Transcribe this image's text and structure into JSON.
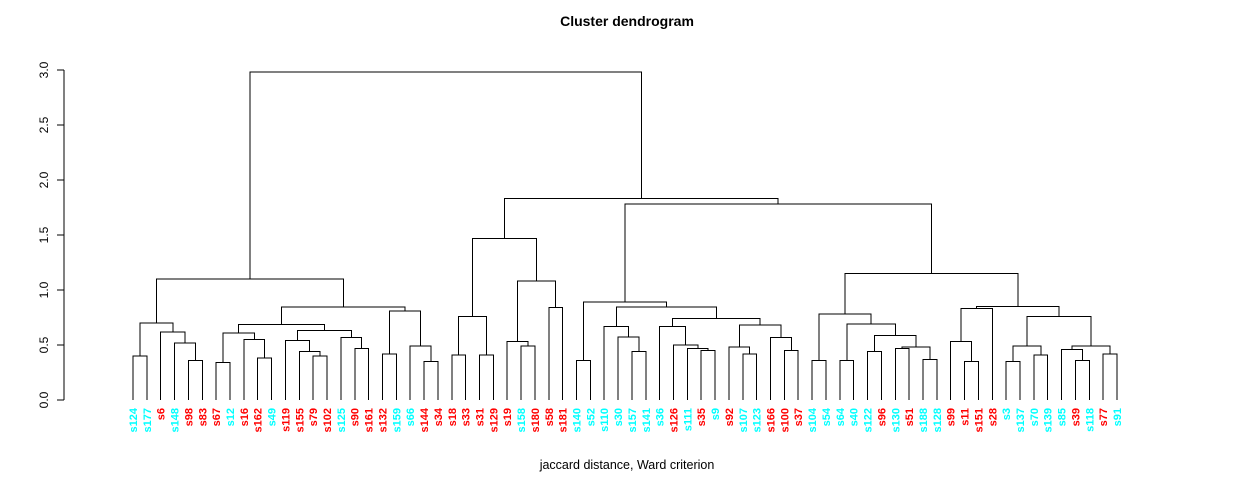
{
  "colors": {
    "red": "#FF0000",
    "cyan": "#00FFFF",
    "line": "#000000",
    "background": "#FFFFFF"
  },
  "chart_data": {
    "type": "dendrogram",
    "title": "Cluster dendrogram",
    "caption": "jaccard distance, Ward criterion",
    "ylabel": "",
    "ylim": [
      0.0,
      3.0
    ],
    "y_ticks": [
      0.0,
      0.5,
      1.0,
      1.5,
      2.0,
      2.5,
      3.0
    ],
    "leaf_count": 72,
    "leaves": [
      {
        "label": "s124",
        "color": "cyan"
      },
      {
        "label": "s177",
        "color": "cyan"
      },
      {
        "label": "s6",
        "color": "red"
      },
      {
        "label": "s148",
        "color": "cyan"
      },
      {
        "label": "s98",
        "color": "red"
      },
      {
        "label": "s83",
        "color": "red"
      },
      {
        "label": "s67",
        "color": "red"
      },
      {
        "label": "s12",
        "color": "cyan"
      },
      {
        "label": "s16",
        "color": "red"
      },
      {
        "label": "s162",
        "color": "red"
      },
      {
        "label": "s49",
        "color": "cyan"
      },
      {
        "label": "s119",
        "color": "red"
      },
      {
        "label": "s155",
        "color": "red"
      },
      {
        "label": "s79",
        "color": "red"
      },
      {
        "label": "s102",
        "color": "red"
      },
      {
        "label": "s125",
        "color": "cyan"
      },
      {
        "label": "s90",
        "color": "red"
      },
      {
        "label": "s161",
        "color": "red"
      },
      {
        "label": "s132",
        "color": "red"
      },
      {
        "label": "s159",
        "color": "cyan"
      },
      {
        "label": "s66",
        "color": "cyan"
      },
      {
        "label": "s144",
        "color": "red"
      },
      {
        "label": "s34",
        "color": "red"
      },
      {
        "label": "s18",
        "color": "red"
      },
      {
        "label": "s33",
        "color": "red"
      },
      {
        "label": "s31",
        "color": "red"
      },
      {
        "label": "s129",
        "color": "red"
      },
      {
        "label": "s19",
        "color": "red"
      },
      {
        "label": "s158",
        "color": "cyan"
      },
      {
        "label": "s180",
        "color": "red"
      },
      {
        "label": "s58",
        "color": "red"
      },
      {
        "label": "s181",
        "color": "red"
      },
      {
        "label": "s140",
        "color": "cyan"
      },
      {
        "label": "s52",
        "color": "cyan"
      },
      {
        "label": "s110",
        "color": "cyan"
      },
      {
        "label": "s30",
        "color": "cyan"
      },
      {
        "label": "s157",
        "color": "cyan"
      },
      {
        "label": "s141",
        "color": "cyan"
      },
      {
        "label": "s36",
        "color": "cyan"
      },
      {
        "label": "s126",
        "color": "red"
      },
      {
        "label": "s111",
        "color": "cyan"
      },
      {
        "label": "s35",
        "color": "red"
      },
      {
        "label": "s9",
        "color": "cyan"
      },
      {
        "label": "s92",
        "color": "red"
      },
      {
        "label": "s107",
        "color": "cyan"
      },
      {
        "label": "s123",
        "color": "cyan"
      },
      {
        "label": "s166",
        "color": "red"
      },
      {
        "label": "s100",
        "color": "red"
      },
      {
        "label": "s37",
        "color": "red"
      },
      {
        "label": "s104",
        "color": "cyan"
      },
      {
        "label": "s54",
        "color": "cyan"
      },
      {
        "label": "s64",
        "color": "cyan"
      },
      {
        "label": "s40",
        "color": "cyan"
      },
      {
        "label": "s122",
        "color": "cyan"
      },
      {
        "label": "s96",
        "color": "red"
      },
      {
        "label": "s130",
        "color": "cyan"
      },
      {
        "label": "s51",
        "color": "red"
      },
      {
        "label": "s188",
        "color": "cyan"
      },
      {
        "label": "s128",
        "color": "cyan"
      },
      {
        "label": "s99",
        "color": "red"
      },
      {
        "label": "s11",
        "color": "red"
      },
      {
        "label": "s151",
        "color": "red"
      },
      {
        "label": "s28",
        "color": "red"
      },
      {
        "label": "s3",
        "color": "cyan"
      },
      {
        "label": "s137",
        "color": "cyan"
      },
      {
        "label": "s70",
        "color": "cyan"
      },
      {
        "label": "s139",
        "color": "cyan"
      },
      {
        "label": "s85",
        "color": "cyan"
      },
      {
        "label": "s39",
        "color": "red"
      },
      {
        "label": "s118",
        "color": "cyan"
      },
      {
        "label": "s77",
        "color": "red"
      },
      {
        "label": "s91",
        "color": "cyan"
      }
    ],
    "tree": {
      "h": 2.98,
      "c": [
        {
          "h": 1.1,
          "c": [
            {
              "h": 0.7,
              "c": [
                {
                  "h": 0.4,
                  "c": [
                    "s124",
                    "s177"
                  ]
                },
                {
                  "h": 0.62,
                  "c": [
                    "s6",
                    {
                      "h": 0.52,
                      "c": [
                        "s148",
                        {
                          "h": 0.36,
                          "c": [
                            "s98",
                            "s83"
                          ]
                        }
                      ]
                    }
                  ]
                }
              ]
            },
            {
              "h": 0.845,
              "c": [
                {
                  "h": 0.685,
                  "c": [
                    {
                      "h": 0.61,
                      "c": [
                        {
                          "h": 0.34,
                          "c": [
                            "s67",
                            "s12"
                          ]
                        },
                        {
                          "h": 0.55,
                          "c": [
                            "s16",
                            {
                              "h": 0.38,
                              "c": [
                                "s162",
                                "s49"
                              ]
                            }
                          ]
                        }
                      ]
                    },
                    {
                      "h": 0.63,
                      "c": [
                        {
                          "h": 0.54,
                          "c": [
                            "s119",
                            {
                              "h": 0.44,
                              "c": [
                                "s155",
                                {
                                  "h": 0.4,
                                  "c": [
                                    "s79",
                                    "s102"
                                  ]
                                }
                              ]
                            }
                          ]
                        },
                        {
                          "h": 0.57,
                          "c": [
                            "s125",
                            {
                              "h": 0.47,
                              "c": [
                                "s90",
                                "s161"
                              ]
                            }
                          ]
                        }
                      ]
                    }
                  ]
                },
                {
                  "h": 0.81,
                  "c": [
                    {
                      "h": 0.42,
                      "c": [
                        "s132",
                        "s159"
                      ]
                    },
                    {
                      "h": 0.49,
                      "c": [
                        "s66",
                        {
                          "h": 0.35,
                          "c": [
                            "s144",
                            "s34"
                          ]
                        }
                      ]
                    }
                  ]
                }
              ]
            }
          ]
        },
        {
          "h": 1.83,
          "c": [
            {
              "h": 1.47,
              "c": [
                {
                  "h": 0.76,
                  "c": [
                    {
                      "h": 0.41,
                      "c": [
                        "s18",
                        "s33"
                      ]
                    },
                    {
                      "h": 0.41,
                      "c": [
                        "s31",
                        "s129"
                      ]
                    }
                  ]
                },
                {
                  "h": 1.08,
                  "c": [
                    {
                      "h": 0.53,
                      "c": [
                        "s19",
                        {
                          "h": 0.49,
                          "c": [
                            "s158",
                            "s180"
                          ]
                        }
                      ]
                    },
                    {
                      "h": 0.84,
                      "c": [
                        "s58",
                        "s181"
                      ]
                    }
                  ]
                }
              ]
            },
            {
              "h": 1.78,
              "c": [
                {
                  "h": 0.89,
                  "c": [
                    {
                      "h": 0.36,
                      "c": [
                        "s140",
                        "s52"
                      ]
                    },
                    {
                      "h": 0.845,
                      "c": [
                        {
                          "h": 0.67,
                          "c": [
                            "s110",
                            {
                              "h": 0.575,
                              "c": [
                                "s30",
                                {
                                  "h": 0.44,
                                  "c": [
                                    "s157",
                                    "s141"
                                  ]
                                }
                              ]
                            }
                          ]
                        },
                        {
                          "h": 0.74,
                          "c": [
                            {
                              "h": 0.67,
                              "c": [
                                "s36",
                                {
                                  "h": 0.5,
                                  "c": [
                                    "s126",
                                    {
                                      "h": 0.47,
                                      "c": [
                                        "s111",
                                        {
                                          "h": 0.45,
                                          "c": [
                                            "s35",
                                            "s9"
                                          ]
                                        }
                                      ]
                                    }
                                  ]
                                }
                              ]
                            },
                            {
                              "h": 0.68,
                              "c": [
                                {
                                  "h": 0.48,
                                  "c": [
                                    "s92",
                                    {
                                      "h": 0.42,
                                      "c": [
                                        "s107",
                                        "s123"
                                      ]
                                    }
                                  ]
                                },
                                {
                                  "h": 0.57,
                                  "c": [
                                    "s166",
                                    {
                                      "h": 0.45,
                                      "c": [
                                        "s100",
                                        "s37"
                                      ]
                                    }
                                  ]
                                }
                              ]
                            }
                          ]
                        }
                      ]
                    }
                  ]
                },
                {
                  "h": 1.15,
                  "c": [
                    {
                      "h": 0.78,
                      "c": [
                        {
                          "h": 0.36,
                          "c": [
                            "s104",
                            "s54"
                          ]
                        },
                        {
                          "h": 0.69,
                          "c": [
                            {
                              "h": 0.36,
                              "c": [
                                "s64",
                                "s40"
                              ]
                            },
                            {
                              "h": 0.585,
                              "c": [
                                {
                                  "h": 0.44,
                                  "c": [
                                    "s122",
                                    "s96"
                                  ]
                                },
                                {
                                  "h": 0.48,
                                  "c": [
                                    {
                                      "h": 0.47,
                                      "c": [
                                        "s130",
                                        "s51"
                                      ]
                                    },
                                    {
                                      "h": 0.37,
                                      "c": [
                                        "s188",
                                        "s128"
                                      ]
                                    }
                                  ]
                                }
                              ]
                            }
                          ]
                        }
                      ]
                    },
                    {
                      "h": 0.85,
                      "c": [
                        {
                          "h": 0.83,
                          "c": [
                            {
                              "h": 0.53,
                              "c": [
                                "s99",
                                {
                                  "h": 0.35,
                                  "c": [
                                    "s11",
                                    "s151"
                                  ]
                                }
                              ]
                            },
                            "s28"
                          ]
                        },
                        {
                          "h": 0.76,
                          "c": [
                            {
                              "h": 0.49,
                              "c": [
                                {
                                  "h": 0.35,
                                  "c": [
                                    "s3",
                                    "s137"
                                  ]
                                },
                                {
                                  "h": 0.41,
                                  "c": [
                                    "s70",
                                    "s139"
                                  ]
                                }
                              ]
                            },
                            {
                              "h": 0.49,
                              "c": [
                                {
                                  "h": 0.46,
                                  "c": [
                                    "s85",
                                    {
                                      "h": 0.36,
                                      "c": [
                                        "s39",
                                        "s118"
                                      ]
                                    }
                                  ]
                                },
                                {
                                  "h": 0.42,
                                  "c": [
                                    "s77",
                                    "s91"
                                  ]
                                }
                              ]
                            }
                          ]
                        }
                      ]
                    }
                  ]
                }
              ]
            }
          ]
        }
      ]
    }
  }
}
